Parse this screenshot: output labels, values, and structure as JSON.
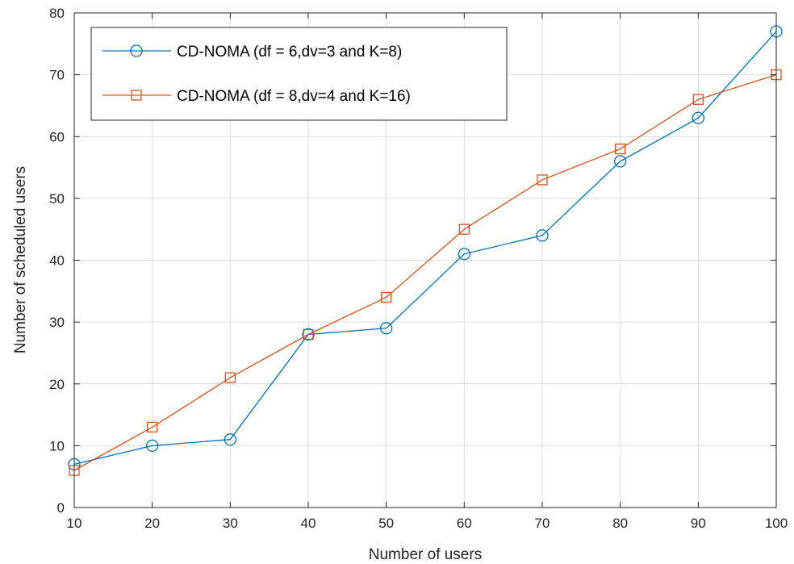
{
  "chart_data": {
    "type": "line",
    "xlabel": "Number of users",
    "ylabel": "Number of scheduled users",
    "xlim": [
      10,
      100
    ],
    "ylim": [
      0,
      80
    ],
    "xticks": [
      10,
      20,
      30,
      40,
      50,
      60,
      70,
      80,
      90,
      100
    ],
    "yticks": [
      0,
      10,
      20,
      30,
      40,
      50,
      60,
      70,
      80
    ],
    "grid": true,
    "legend_position": "top-left",
    "x": [
      10,
      20,
      30,
      40,
      50,
      60,
      70,
      80,
      90,
      100
    ],
    "series": [
      {
        "name": "CD-NOMA (df = 6,dv=3 and K=8)",
        "color": "#0072BD",
        "marker": "circle",
        "values": [
          7,
          10,
          11,
          28,
          29,
          41,
          44,
          56,
          63,
          77
        ]
      },
      {
        "name": "CD-NOMA (df = 8,dv=4 and K=16)",
        "color": "#D95319",
        "marker": "square",
        "values": [
          6,
          13,
          21,
          28,
          34,
          45,
          53,
          58,
          66,
          70
        ]
      }
    ]
  }
}
